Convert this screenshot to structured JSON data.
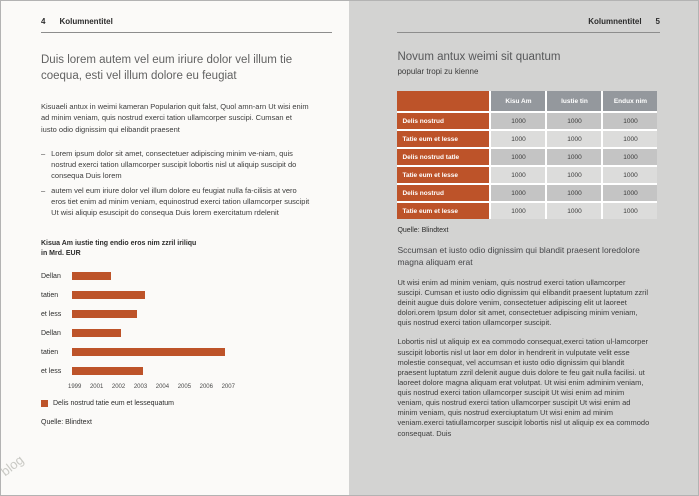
{
  "left_page": {
    "page_number": "4",
    "running_header": "Kolumnentitel",
    "title": "Duis lorem autem vel eum iriure dolor vel illum tie coequa, esti vel illum dolore eu feugiat",
    "intro": "Kisuaeli antux in weimi kameran Popularion quit falst, Quol amn-arn Ut wisi enim ad minim veniam, quis nostrud exerci tation ullamcorper suscipi. Cumsan et iusto odio dignissim qui elibandit praesent",
    "bullet_marker": "–",
    "bullets": [
      "Lorem ipsum dolor sit amet, consectetuer adipiscing minim ve-niam, quis nostrud exerci tation ullamcorper suscipit lobortis nisl ut aliquip suscipit do consequa Duis lorem",
      "autem vel eum iriure dolor vel illum dolore eu feugiat nulla fa-cilisis at vero eros tiet enim ad minim veniam, equinostrud exerci tation ullamcorper suscipit Ut wisi aliquip esuscipit do consequa Duis lorem exercitatum rdelenit"
    ],
    "watermark": "blog"
  },
  "chart_data": {
    "type": "bar",
    "orientation": "horizontal",
    "title": "Kisua Am iustie ting endio eros nim zzril iriliqu",
    "subtitle": "in Mrd. EUR",
    "categories": [
      "Dellan",
      "tatien",
      "et less",
      "Dellan",
      "tatien",
      "et less"
    ],
    "values": [
      2001,
      2002.7,
      2002.3,
      2001.5,
      2006.8,
      2002.6
    ],
    "xlim": [
      1999,
      2007
    ],
    "x_axis_ticks": [
      "1999",
      "2001",
      "2002",
      "2003",
      "2004",
      "2005",
      "2006",
      "2007"
    ],
    "legend": "Delis nostrud tatie eum et lessequatum",
    "source": "Quelle: Blindtext",
    "bar_color": "#bd5329"
  },
  "right_page": {
    "page_number": "5",
    "running_header": "Kolumnentitel",
    "title": "Novum antux weimi sit quantum",
    "subtitle": "popular tropi zu kienne",
    "table": {
      "col_headers": [
        "Kisu Am",
        "Iustie tin",
        "Endux nim"
      ],
      "rows": [
        {
          "label": "Delis nostrud",
          "values": [
            "1000",
            "1000",
            "1000"
          ]
        },
        {
          "label": "Tatie eum et lesse",
          "values": [
            "1000",
            "1000",
            "1000"
          ]
        },
        {
          "label": "Delis nostrud tatle",
          "values": [
            "1000",
            "1000",
            "1000"
          ]
        },
        {
          "label": "Tatie eum et lesse",
          "values": [
            "1000",
            "1000",
            "1000"
          ]
        },
        {
          "label": "Delis nostrud",
          "values": [
            "1000",
            "1000",
            "1000"
          ]
        },
        {
          "label": "Tatie eum et lesse",
          "values": [
            "1000",
            "1000",
            "1000"
          ]
        }
      ],
      "source": "Quelle: Blindtext"
    },
    "subheading": "Sccumsan et iusto odio dignissim qui blandit praesent loredolore magna aliquam erat",
    "paragraphs": [
      "Ut wisi enim ad minim veniam, quis nostrud exerci tation ullamcorper suscipi. Cumsan et iusto odio dignissim qui elibandit praesent luptatum zzril deinit augue duis dolore venim, consectetuer adipiscing elit ut laoreet dolori.orem Ipsum dolor sit amet, consectetuer adipiscing minim veniam, quis nostrud exerci tation ullamcorper suscipit.",
      "Lobortis nisl ut aliquip ex ea commodo consequat,exerci tation ul-lamcorper suscipit lobortis nisl ut laor em dolor in hendrerit in vulputate velit esse molestie consequat, vel accumsan et iusto odio dignissim qui blandit praesent luptatum zzril delenit augue duis dolore te feu gait nulla facilisi. ut laoreet dolore magna aliquam erat volutpat. Ut wisi enim adminim veniam, quis nostrud exerci tation ullamcorper suscipit Ut wisi enim ad minim veniam, quis nostrud exerci tation ullamcorper suscipit Ut wisi enim ad minim veniam, quis nostrud exerciuptatum Ut wisi enim ad minim veniam.exerci tatiullamcorper suscipit lobortis nisl ut aliquip ex ea commodo consequat. Duis"
    ]
  },
  "colors": {
    "accent": "#bd5329",
    "table_header": "#94989d",
    "row_dark": "#c4c4c4",
    "row_light": "#dcdcdb",
    "right_page_bg": "#d3d3d2"
  }
}
